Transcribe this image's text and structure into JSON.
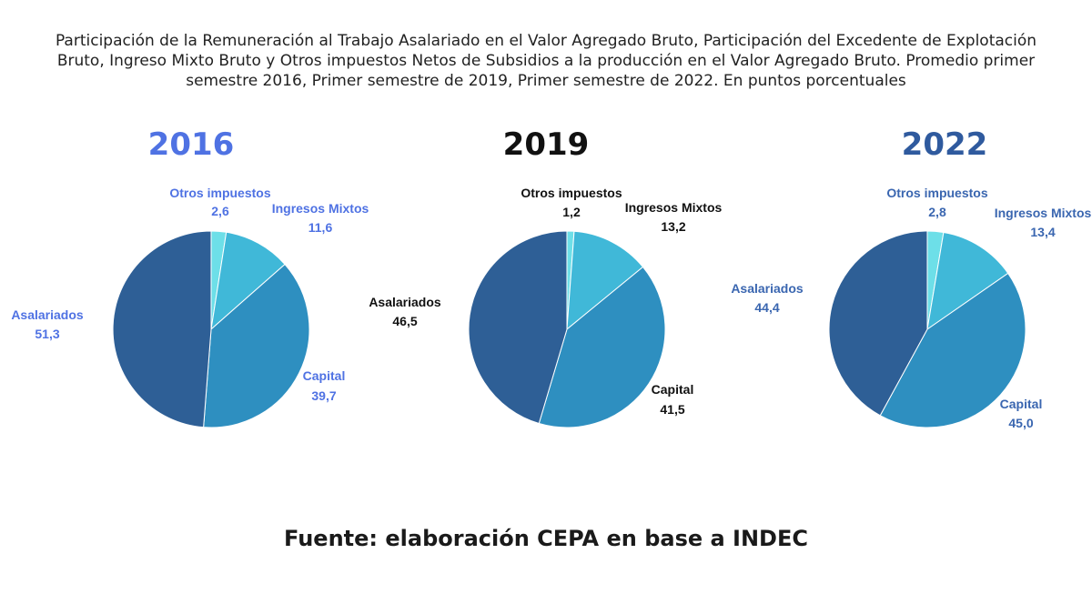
{
  "title": "Participación de la Remuneración al Trabajo Asalariado en el Valor Agregado Bruto, Participación del Excedente de Explotación Bruto, Ingreso Mixto Bruto y Otros impuestos Netos de Subsidios a la producción en el Valor Agregado Bruto. Promedio primer semestre 2016, Primer semestre de 2019, Primer semestre de 2022. En puntos porcentuales",
  "source": "Fuente: elaboración CEPA en base a INDEC",
  "colors": {
    "Otros impuestos": "#6ddfe8",
    "Ingresos Mixtos": "#40b8d8",
    "Capital": "#2e8fc0",
    "Asalariados": "#2e5f96"
  },
  "chart_data": [
    {
      "type": "pie",
      "title": "2016",
      "title_color": "#4f72e3",
      "label_color": "#4f72e3",
      "slices": [
        {
          "label": "Otros impuestos",
          "value": 2.6,
          "display": "2,6"
        },
        {
          "label": "Ingresos Mixtos",
          "value": 11.6,
          "display": "11,6"
        },
        {
          "label": "Capital",
          "value": 39.7,
          "display": "39,7"
        },
        {
          "label": "Asalariados",
          "value": 51.3,
          "display": "51,3"
        }
      ]
    },
    {
      "type": "pie",
      "title": "2019",
      "title_color": "#111111",
      "label_color": "#111111",
      "slices": [
        {
          "label": "Otros impuestos",
          "value": 1.2,
          "display": "1,2"
        },
        {
          "label": "Ingresos Mixtos",
          "value": 13.2,
          "display": "13,2"
        },
        {
          "label": "Capital",
          "value": 41.5,
          "display": "41,5"
        },
        {
          "label": "Asalariados",
          "value": 46.5,
          "display": "46,5"
        }
      ]
    },
    {
      "type": "pie",
      "title": "2022",
      "title_color": "#2f5a9e",
      "label_color": "#3a66b0",
      "slices": [
        {
          "label": "Otros impuestos",
          "value": 2.8,
          "display": "2,8"
        },
        {
          "label": "Ingresos Mixtos",
          "value": 13.4,
          "display": "13,4"
        },
        {
          "label": "Capital",
          "value": 45.0,
          "display": "45,0"
        },
        {
          "label": "Asalariados",
          "value": 44.4,
          "display": "44,4"
        }
      ]
    }
  ]
}
